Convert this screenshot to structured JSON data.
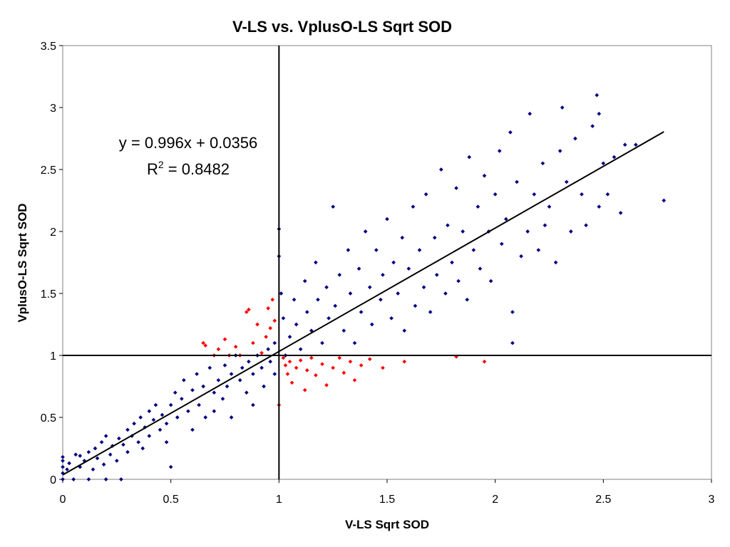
{
  "chart_data": {
    "type": "scatter",
    "title": "V-LS vs. VplusO-LS Sqrt SOD",
    "xlabel": "V-LS Sqrt SOD",
    "ylabel": "VplusO-LS Sqrt SOD",
    "xlim": [
      0,
      3
    ],
    "ylim": [
      0,
      3.5
    ],
    "xticks": [
      0,
      0.5,
      1,
      1.5,
      2,
      2.5,
      3
    ],
    "yticks": [
      0,
      0.5,
      1,
      1.5,
      2,
      2.5,
      3,
      3.5
    ],
    "xtick_labels": [
      "0",
      "0.5",
      "1",
      "1.5",
      "2",
      "2.5",
      "3"
    ],
    "ytick_labels": [
      "0",
      "0.5",
      "1",
      "1.5",
      "2",
      "2.5",
      "3",
      "3.5"
    ],
    "grid": false,
    "legend": false,
    "reference_lines": {
      "x": 1,
      "y": 1
    },
    "trendline": {
      "slope": 0.996,
      "intercept": 0.0356,
      "x_range": [
        0,
        2.78
      ],
      "equation_text": "y = 0.996x + 0.0356",
      "r2_prefix": "R",
      "r2_sup": "2",
      "r2_suffix": " = 0.8482"
    },
    "series": [
      {
        "color": "#000080",
        "points": [
          [
            0.0,
            0.0
          ],
          [
            0.0,
            0.05
          ],
          [
            0.0,
            0.1
          ],
          [
            0.0,
            0.15
          ],
          [
            0.0,
            0.18
          ],
          [
            0.02,
            0.08
          ],
          [
            0.03,
            0.13
          ],
          [
            0.05,
            0.0
          ],
          [
            0.06,
            0.2
          ],
          [
            0.08,
            0.1
          ],
          [
            0.08,
            0.19
          ],
          [
            0.1,
            0.15
          ],
          [
            0.12,
            0.0
          ],
          [
            0.12,
            0.22
          ],
          [
            0.14,
            0.08
          ],
          [
            0.15,
            0.25
          ],
          [
            0.16,
            0.17
          ],
          [
            0.18,
            0.3
          ],
          [
            0.19,
            0.12
          ],
          [
            0.2,
            0.0
          ],
          [
            0.2,
            0.35
          ],
          [
            0.22,
            0.2
          ],
          [
            0.23,
            0.27
          ],
          [
            0.25,
            0.15
          ],
          [
            0.26,
            0.33
          ],
          [
            0.27,
            0.0
          ],
          [
            0.28,
            0.28
          ],
          [
            0.3,
            0.4
          ],
          [
            0.3,
            0.22
          ],
          [
            0.32,
            0.35
          ],
          [
            0.33,
            0.45
          ],
          [
            0.35,
            0.3
          ],
          [
            0.36,
            0.5
          ],
          [
            0.37,
            0.25
          ],
          [
            0.38,
            0.42
          ],
          [
            0.4,
            0.55
          ],
          [
            0.4,
            0.35
          ],
          [
            0.42,
            0.48
          ],
          [
            0.43,
            0.6
          ],
          [
            0.45,
            0.4
          ],
          [
            0.46,
            0.52
          ],
          [
            0.48,
            0.45
          ],
          [
            0.48,
            0.3
          ],
          [
            0.5,
            0.6
          ],
          [
            0.5,
            0.1
          ],
          [
            0.52,
            0.7
          ],
          [
            0.53,
            0.5
          ],
          [
            0.55,
            0.65
          ],
          [
            0.56,
            0.8
          ],
          [
            0.58,
            0.55
          ],
          [
            0.6,
            0.72
          ],
          [
            0.6,
            0.4
          ],
          [
            0.62,
            0.85
          ],
          [
            0.63,
            0.6
          ],
          [
            0.65,
            0.75
          ],
          [
            0.66,
            0.5
          ],
          [
            0.68,
            0.9
          ],
          [
            0.7,
            0.7
          ],
          [
            0.7,
            0.55
          ],
          [
            0.72,
            0.8
          ],
          [
            0.74,
            0.65
          ],
          [
            0.75,
            0.92
          ],
          [
            0.76,
            0.75
          ],
          [
            0.78,
            0.85
          ],
          [
            0.78,
            0.5
          ],
          [
            0.8,
            1.0
          ],
          [
            0.82,
            0.8
          ],
          [
            0.83,
            0.9
          ],
          [
            0.85,
            0.7
          ],
          [
            0.86,
            0.95
          ],
          [
            0.88,
            0.85
          ],
          [
            0.88,
            0.6
          ],
          [
            0.9,
            1.0
          ],
          [
            0.92,
            0.9
          ],
          [
            0.93,
            0.75
          ],
          [
            0.95,
            1.05
          ],
          [
            0.96,
            0.95
          ],
          [
            0.98,
            0.85
          ],
          [
            0.98,
            1.1
          ],
          [
            1.0,
            2.02
          ],
          [
            1.0,
            1.8
          ],
          [
            1.01,
            1.5
          ],
          [
            1.02,
            1.3
          ],
          [
            1.03,
            1.0
          ],
          [
            1.05,
            1.15
          ],
          [
            1.07,
            1.45
          ],
          [
            1.08,
            1.25
          ],
          [
            1.1,
            1.05
          ],
          [
            1.12,
            1.6
          ],
          [
            1.13,
            1.35
          ],
          [
            1.15,
            1.2
          ],
          [
            1.17,
            1.75
          ],
          [
            1.18,
            1.45
          ],
          [
            1.2,
            1.1
          ],
          [
            1.22,
            1.55
          ],
          [
            1.23,
            1.3
          ],
          [
            1.25,
            2.2
          ],
          [
            1.26,
            1.4
          ],
          [
            1.28,
            1.65
          ],
          [
            1.3,
            1.2
          ],
          [
            1.32,
            1.85
          ],
          [
            1.33,
            1.5
          ],
          [
            1.35,
            1.1
          ],
          [
            1.37,
            1.7
          ],
          [
            1.38,
            1.35
          ],
          [
            1.4,
            2.0
          ],
          [
            1.42,
            1.55
          ],
          [
            1.43,
            1.25
          ],
          [
            1.45,
            1.85
          ],
          [
            1.47,
            1.45
          ],
          [
            1.48,
            1.65
          ],
          [
            1.5,
            2.1
          ],
          [
            1.52,
            1.3
          ],
          [
            1.53,
            1.75
          ],
          [
            1.55,
            1.5
          ],
          [
            1.57,
            1.95
          ],
          [
            1.58,
            1.2
          ],
          [
            1.6,
            1.7
          ],
          [
            1.62,
            2.2
          ],
          [
            1.63,
            1.4
          ],
          [
            1.65,
            1.85
          ],
          [
            1.67,
            1.55
          ],
          [
            1.68,
            2.3
          ],
          [
            1.7,
            1.35
          ],
          [
            1.72,
            1.95
          ],
          [
            1.73,
            1.65
          ],
          [
            1.75,
            2.5
          ],
          [
            1.77,
            1.5
          ],
          [
            1.78,
            2.05
          ],
          [
            1.8,
            1.75
          ],
          [
            1.82,
            2.35
          ],
          [
            1.83,
            1.6
          ],
          [
            1.85,
            2.0
          ],
          [
            1.87,
            1.45
          ],
          [
            1.88,
            2.6
          ],
          [
            1.9,
            1.85
          ],
          [
            1.92,
            2.2
          ],
          [
            1.93,
            1.7
          ],
          [
            1.95,
            2.45
          ],
          [
            1.97,
            2.0
          ],
          [
            1.98,
            1.6
          ],
          [
            2.0,
            2.3
          ],
          [
            2.02,
            2.65
          ],
          [
            2.03,
            1.9
          ],
          [
            2.05,
            2.1
          ],
          [
            2.07,
            2.8
          ],
          [
            2.08,
            1.35
          ],
          [
            2.08,
            1.1
          ],
          [
            2.1,
            2.4
          ],
          [
            2.12,
            1.8
          ],
          [
            2.15,
            2.0
          ],
          [
            2.16,
            2.95
          ],
          [
            2.18,
            2.3
          ],
          [
            2.2,
            1.85
          ],
          [
            2.22,
            2.55
          ],
          [
            2.23,
            2.05
          ],
          [
            2.25,
            2.2
          ],
          [
            2.28,
            1.75
          ],
          [
            2.3,
            2.65
          ],
          [
            2.31,
            3.0
          ],
          [
            2.33,
            2.4
          ],
          [
            2.35,
            2.0
          ],
          [
            2.37,
            2.75
          ],
          [
            2.4,
            2.3
          ],
          [
            2.42,
            2.05
          ],
          [
            2.45,
            2.85
          ],
          [
            2.47,
            3.1
          ],
          [
            2.48,
            2.95
          ],
          [
            2.48,
            2.2
          ],
          [
            2.5,
            2.55
          ],
          [
            2.52,
            2.3
          ],
          [
            2.55,
            2.6
          ],
          [
            2.58,
            2.15
          ],
          [
            2.6,
            2.7
          ],
          [
            2.65,
            2.7
          ],
          [
            2.78,
            2.25
          ]
        ]
      },
      {
        "color": "#ff0000",
        "points": [
          [
            0.65,
            1.1
          ],
          [
            0.66,
            1.08
          ],
          [
            0.7,
            1.0
          ],
          [
            0.72,
            1.05
          ],
          [
            0.75,
            1.13
          ],
          [
            0.77,
            1.0
          ],
          [
            0.8,
            1.07
          ],
          [
            0.82,
            1.0
          ],
          [
            0.85,
            1.35
          ],
          [
            0.86,
            1.37
          ],
          [
            0.88,
            1.1
          ],
          [
            0.9,
            1.25
          ],
          [
            0.92,
            1.02
          ],
          [
            0.94,
            1.15
          ],
          [
            0.95,
            1.38
          ],
          [
            0.96,
            1.22
          ],
          [
            0.97,
            1.45
          ],
          [
            0.98,
            1.28
          ],
          [
            1.0,
            0.6
          ],
          [
            1.02,
            0.98
          ],
          [
            1.03,
            0.92
          ],
          [
            1.04,
            0.85
          ],
          [
            1.05,
            0.95
          ],
          [
            1.06,
            0.78
          ],
          [
            1.08,
            0.9
          ],
          [
            1.1,
            0.96
          ],
          [
            1.12,
            0.72
          ],
          [
            1.13,
            0.88
          ],
          [
            1.15,
            0.98
          ],
          [
            1.17,
            0.84
          ],
          [
            1.2,
            0.93
          ],
          [
            1.22,
            0.76
          ],
          [
            1.25,
            0.9
          ],
          [
            1.28,
            0.98
          ],
          [
            1.3,
            0.86
          ],
          [
            1.33,
            0.95
          ],
          [
            1.35,
            0.8
          ],
          [
            1.38,
            0.92
          ],
          [
            1.42,
            0.97
          ],
          [
            1.48,
            0.9
          ],
          [
            1.58,
            0.95
          ],
          [
            1.82,
            0.99
          ],
          [
            1.95,
            0.95
          ]
        ]
      }
    ]
  }
}
